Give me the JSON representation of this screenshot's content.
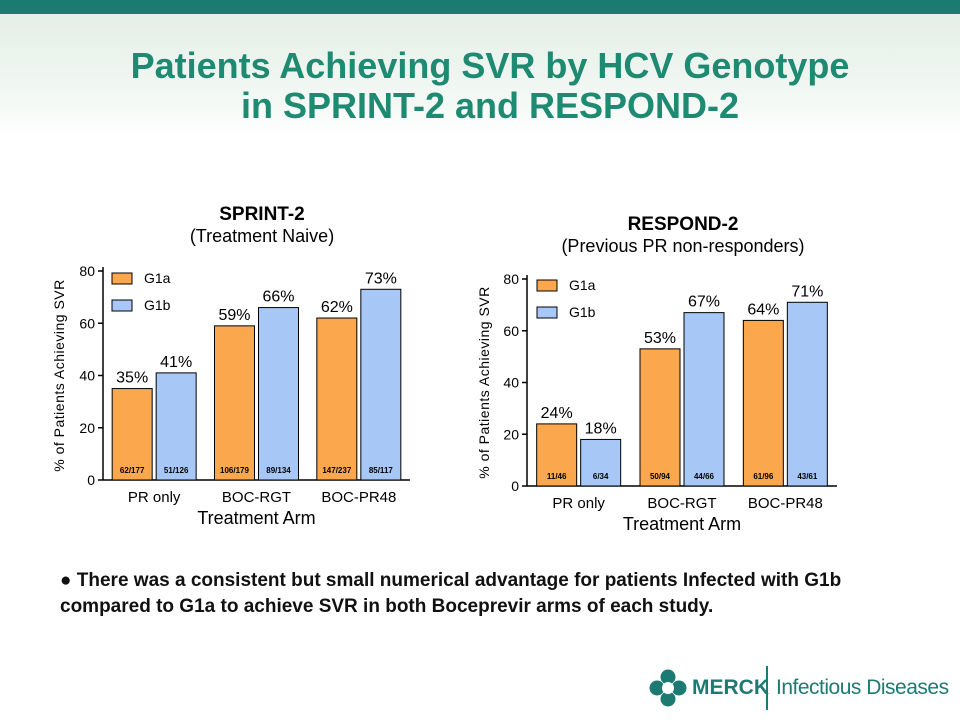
{
  "title": {
    "line1": "Patients Achieving SVR by HCV Genotype",
    "line2": "in SPRINT-2 and RESPOND-2"
  },
  "colors": {
    "g1a": "#fba74e",
    "g1b": "#a7c8f7",
    "title": "#1f8a72",
    "brand": "#1d7a73"
  },
  "chart_data": [
    {
      "type": "bar",
      "title": "SPRINT-2",
      "subtitle": "(Treatment Naive)",
      "xlabel": "Treatment Arm",
      "ylabel": "% of Patients Achieving SVR",
      "ylim": [
        0,
        80
      ],
      "yticks": [
        "0",
        "20",
        "40",
        "60",
        "80"
      ],
      "categories": [
        "PR only",
        "BOC-RGT",
        "BOC-PR48"
      ],
      "legend_position": "top-left",
      "series": [
        {
          "name": "G1a",
          "values": [
            35,
            59,
            62
          ],
          "labels": [
            "35%",
            "59%",
            "62%"
          ],
          "counts": [
            "62/177",
            "106/179",
            "147/237"
          ]
        },
        {
          "name": "G1b",
          "values": [
            41,
            66,
            73
          ],
          "labels": [
            "41%",
            "66%",
            "73%"
          ],
          "counts": [
            "51/126",
            "89/134",
            "85/117"
          ]
        }
      ]
    },
    {
      "type": "bar",
      "title": "RESPOND-2",
      "subtitle": "(Previous PR non-responders)",
      "xlabel": "Treatment Arm",
      "ylabel": "% of Patients Achieving SVR",
      "ylim": [
        0,
        80
      ],
      "yticks": [
        "0",
        "20",
        "40",
        "60",
        "80"
      ],
      "categories": [
        "PR only",
        "BOC-RGT",
        "BOC-PR48"
      ],
      "legend_position": "top-left",
      "series": [
        {
          "name": "G1a",
          "values": [
            24,
            53,
            64
          ],
          "labels": [
            "24%",
            "53%",
            "64%"
          ],
          "counts": [
            "11/46",
            "50/94",
            "61/96"
          ]
        },
        {
          "name": "G1b",
          "values": [
            18,
            67,
            71
          ],
          "labels": [
            "18%",
            "67%",
            "71%"
          ],
          "counts": [
            "6/34",
            "44/66",
            "43/61"
          ]
        }
      ]
    }
  ],
  "bullet": {
    "marker": "●",
    "text": "There was a consistent but small numerical advantage for patients Infected with G1b compared to G1a to achieve SVR in both Boceprevir arms of each study."
  },
  "footer": {
    "brand": "MERCK",
    "division": "Infectious Diseases"
  }
}
